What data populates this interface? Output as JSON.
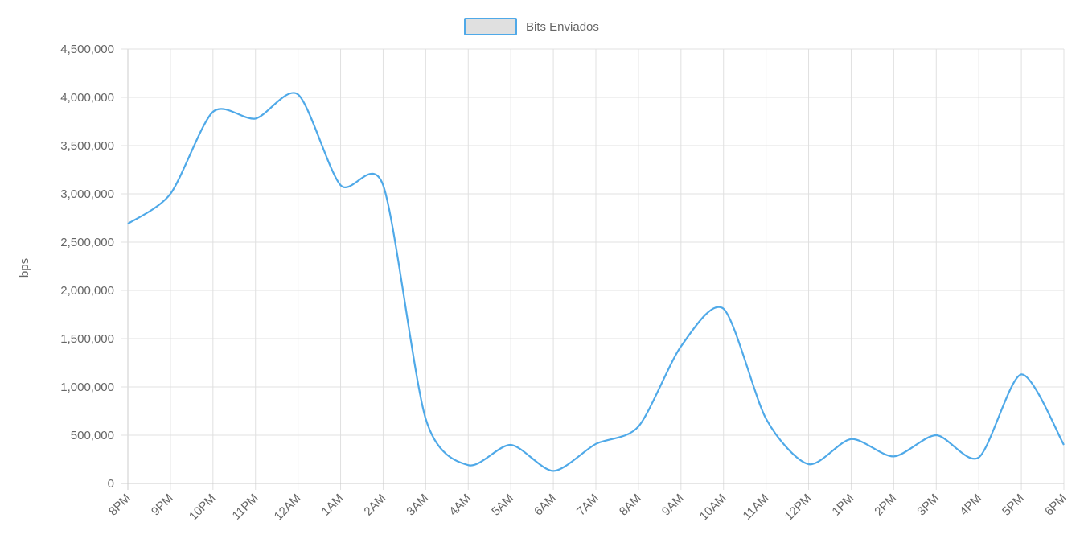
{
  "chart_data": {
    "type": "line",
    "legend": {
      "position": "top",
      "entries": [
        "Bits Enviados"
      ]
    },
    "ylabel": "bps",
    "xlabel": "",
    "ylim": [
      0,
      4500000
    ],
    "y_ticks": [
      "0",
      "500,000",
      "1,000,000",
      "1,500,000",
      "2,000,000",
      "2,500,000",
      "3,000,000",
      "3,500,000",
      "4,000,000",
      "4,500,000"
    ],
    "grid": true,
    "categories": [
      "8PM",
      "9PM",
      "10PM",
      "11PM",
      "12AM",
      "1AM",
      "2AM",
      "3AM",
      "4AM",
      "5AM",
      "6AM",
      "7AM",
      "8AM",
      "9AM",
      "10AM",
      "11AM",
      "12PM",
      "1PM",
      "2PM",
      "3PM",
      "4PM",
      "5PM",
      "6PM"
    ],
    "series": [
      {
        "name": "Bits Enviados",
        "values": [
          2690000,
          3000000,
          3850000,
          3780000,
          4030000,
          3090000,
          3090000,
          670000,
          190000,
          400000,
          130000,
          410000,
          590000,
          1420000,
          1810000,
          670000,
          200000,
          460000,
          280000,
          500000,
          270000,
          1130000,
          400000
        ]
      }
    ],
    "colors": {
      "line": "#4fa9e8",
      "legend_fill": "#e0e0e0",
      "grid": "#e0e0e0",
      "axis": "#cccccc",
      "text": "#666666"
    }
  }
}
